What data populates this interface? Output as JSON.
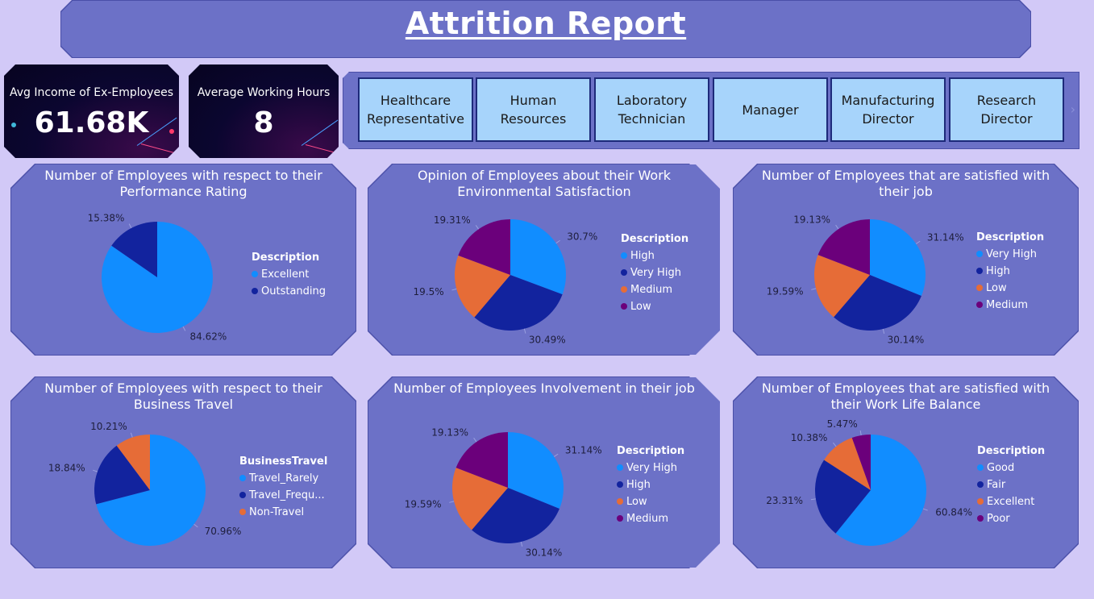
{
  "header": {
    "title": "Attrition Report"
  },
  "kpis": [
    {
      "label": "Avg Income of Ex-Employees",
      "value": "61.68K"
    },
    {
      "label": "Average Working Hours",
      "value": "8"
    }
  ],
  "slicer": {
    "items": [
      "Healthcare Representative",
      "Human Resources",
      "Laboratory Technician",
      "Manager",
      "Manufacturing Director",
      "Research Director"
    ],
    "arrow": "›"
  },
  "colors": {
    "light_blue": "#118dff",
    "dark_blue": "#12239e",
    "orange": "#e66c37",
    "purple": "#6b007b"
  },
  "chart_data": [
    {
      "type": "pie",
      "title": "Number of Employees with respect to their Performance Rating",
      "legend_title": "Description",
      "categories": [
        "Excellent",
        "Outstanding"
      ],
      "values": [
        84.62,
        15.38
      ],
      "labels": [
        "84.62%",
        "15.38%"
      ],
      "colors": [
        "#118dff",
        "#12239e"
      ],
      "legend": "right"
    },
    {
      "type": "pie",
      "title": "Opinion of Employees about their Work Environmental Satisfaction",
      "legend_title": "Description",
      "categories": [
        "High",
        "Very High",
        "Medium",
        "Low"
      ],
      "values": [
        30.7,
        30.49,
        19.5,
        19.31
      ],
      "labels": [
        "30.7%",
        "30.49%",
        "19.5%",
        "19.31%"
      ],
      "colors": [
        "#118dff",
        "#12239e",
        "#e66c37",
        "#6b007b"
      ],
      "legend": "right"
    },
    {
      "type": "pie",
      "title": "Number of Employees that are satisfied with their job",
      "legend_title": "Description",
      "categories": [
        "Very High",
        "High",
        "Low",
        "Medium"
      ],
      "values": [
        31.14,
        30.14,
        19.59,
        19.13
      ],
      "labels": [
        "31.14%",
        "30.14%",
        "19.59%",
        "19.13%"
      ],
      "colors": [
        "#118dff",
        "#12239e",
        "#e66c37",
        "#6b007b"
      ],
      "legend": "right"
    },
    {
      "type": "pie",
      "title": "Number of Employees with respect to their Business Travel",
      "legend_title": "BusinessTravel",
      "categories": [
        "Travel_Rarely",
        "Travel_Frequ...",
        "Non-Travel"
      ],
      "values": [
        70.96,
        18.84,
        10.21
      ],
      "labels": [
        "70.96%",
        "18.84%",
        "10.21%"
      ],
      "colors": [
        "#118dff",
        "#12239e",
        "#e66c37"
      ],
      "legend": "right"
    },
    {
      "type": "pie",
      "title": "Number of Employees Involvement in their job",
      "legend_title": "Description",
      "categories": [
        "Very High",
        "High",
        "Low",
        "Medium"
      ],
      "values": [
        31.14,
        30.14,
        19.59,
        19.13
      ],
      "labels": [
        "31.14%",
        "30.14%",
        "19.59%",
        "19.13%"
      ],
      "colors": [
        "#118dff",
        "#12239e",
        "#e66c37",
        "#6b007b"
      ],
      "legend": "right"
    },
    {
      "type": "pie",
      "title": "Number of Employees that are satisfied with their Work Life Balance",
      "legend_title": "Description",
      "categories": [
        "Good",
        "Fair",
        "Excellent",
        "Poor"
      ],
      "values": [
        60.84,
        23.31,
        10.38,
        5.47
      ],
      "labels": [
        "60.84%",
        "23.31%",
        "10.38%",
        "5.47%"
      ],
      "colors": [
        "#118dff",
        "#12239e",
        "#e66c37",
        "#6b007b"
      ],
      "legend": "right"
    }
  ]
}
